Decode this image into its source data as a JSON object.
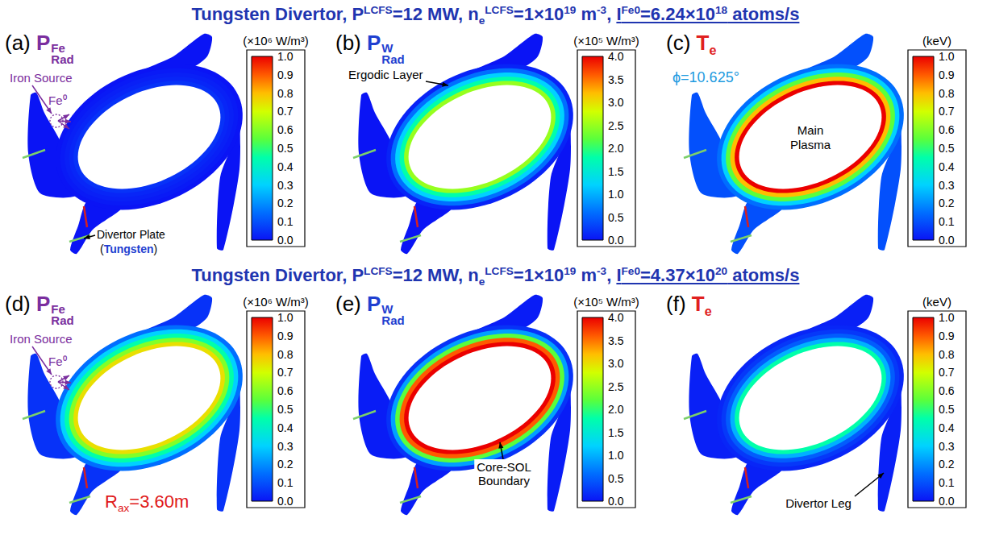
{
  "titles": [
    {
      "main": [
        {
          "text": "Tungsten Divertor, P"
        },
        {
          "sup": "LCFS"
        },
        {
          "text": "=12 MW, n"
        },
        {
          "sub": "e"
        },
        {
          "sup": "LCFS"
        },
        {
          "text": "=1×10"
        },
        {
          "sup": "19"
        },
        {
          "text": " m"
        },
        {
          "sup": "-3"
        },
        {
          "text": ", "
        }
      ],
      "highlight": [
        {
          "text": "I"
        },
        {
          "sup": "Fe0"
        },
        {
          "text": "=6.24×10"
        },
        {
          "sup": "18"
        },
        {
          "text": " atoms/s"
        }
      ]
    },
    {
      "main": [
        {
          "text": "Tungsten Divertor, P"
        },
        {
          "sup": "LCFS"
        },
        {
          "text": "=12 MW, n"
        },
        {
          "sub": "e"
        },
        {
          "sup": "LCFS"
        },
        {
          "text": "=1×10"
        },
        {
          "sup": "19"
        },
        {
          "text": " m"
        },
        {
          "sup": "-3"
        },
        {
          "text": ", "
        }
      ],
      "highlight": [
        {
          "text": "I"
        },
        {
          "sup": "Fe0"
        },
        {
          "text": "=4.37×10"
        },
        {
          "sup": "20"
        },
        {
          "text": " atoms/s"
        }
      ]
    }
  ],
  "chart_data": [
    {
      "type": "heatmap",
      "label": "(a)",
      "title": {
        "symbol": "P",
        "sub": "Rad",
        "sup": "Fe"
      },
      "color": "#7a2e9e",
      "colorbar": {
        "unit": "(×10⁶ W/m³)",
        "range": [
          0,
          1
        ],
        "ticks": [
          {
            "value": 0,
            "label": "0.0"
          },
          0.1,
          0.2,
          0.3,
          0.4,
          0.5,
          0.6,
          0.7,
          0.8,
          0.9,
          {
            "value": 1,
            "label": "1.0"
          }
        ]
      },
      "edge_profile": [
        0.05,
        0.03,
        0.02,
        0.01,
        0
      ],
      "divertor_leg": 0,
      "annotations": {
        "source": "Iron Source",
        "species": "Fe⁰",
        "plate": "Divertor Plate",
        "plate_material": "(Tungsten)"
      }
    },
    {
      "type": "heatmap",
      "label": "(b)",
      "title": {
        "symbol": "P",
        "sub": "Rad",
        "sup": "W"
      },
      "color": "#1f3fd0",
      "colorbar": {
        "unit": "(×10⁵ W/m³)",
        "range": [
          0,
          4
        ],
        "ticks": [
          {
            "value": 0,
            "label": "0.0"
          },
          0.5,
          {
            "value": 1,
            "label": "1.0"
          },
          1.5,
          {
            "value": 2,
            "label": "2.0"
          },
          2.5,
          {
            "value": 3,
            "label": "3.0"
          },
          3.5,
          {
            "value": 4,
            "label": "4.0"
          }
        ]
      },
      "edge_profile": [
        2.5,
        1.8,
        1.2,
        0.6,
        0.1
      ],
      "divertor_leg": 0,
      "annotations": {
        "layer": "Ergodic Layer"
      }
    },
    {
      "type": "heatmap",
      "label": "(c)",
      "title": {
        "symbol": "T",
        "sub": "e"
      },
      "color": "#e02020",
      "colorbar": {
        "unit": "(keV)",
        "range": [
          0,
          1
        ],
        "ticks": [
          {
            "value": 0,
            "label": "0.0"
          },
          0.1,
          0.2,
          0.3,
          0.4,
          0.5,
          0.6,
          0.7,
          0.8,
          0.9,
          {
            "value": 1,
            "label": "1.0"
          }
        ]
      },
      "edge_profile": [
        1.0,
        0.8,
        0.55,
        0.3,
        0.15
      ],
      "divertor_leg": 0.1,
      "annotations": {
        "angle": "ϕ=10.625°",
        "plasma": "Main Plasma"
      }
    },
    {
      "type": "heatmap",
      "label": "(d)",
      "title": {
        "symbol": "P",
        "sub": "Rad",
        "sup": "Fe"
      },
      "color": "#7a2e9e",
      "colorbar": {
        "unit": "(×10⁶ W/m³)",
        "range": [
          0,
          1
        ],
        "ticks": [
          {
            "value": 0,
            "label": "0.0"
          },
          0.1,
          0.2,
          0.3,
          0.4,
          0.5,
          0.6,
          0.7,
          0.8,
          0.9,
          {
            "value": 1,
            "label": "1.0"
          }
        ]
      },
      "edge_profile": [
        0.75,
        0.6,
        0.45,
        0.3,
        0.15
      ],
      "divertor_leg": 0.05,
      "annotations": {
        "source": "Iron Source",
        "species": "Fe⁰",
        "axis": {
          "symbol": "R",
          "sub": "ax",
          "text": "=3.60m"
        }
      }
    },
    {
      "type": "heatmap",
      "label": "(e)",
      "title": {
        "symbol": "P",
        "sub": "Rad",
        "sup": "W"
      },
      "color": "#1f3fd0",
      "colorbar": {
        "unit": "(×10⁵ W/m³)",
        "range": [
          0,
          4
        ],
        "ticks": [
          {
            "value": 0,
            "label": "0.0"
          },
          0.5,
          {
            "value": 1,
            "label": "1.0"
          },
          1.5,
          {
            "value": 2,
            "label": "2.0"
          },
          2.5,
          {
            "value": 3,
            "label": "3.0"
          },
          3.5,
          {
            "value": 4,
            "label": "4.0"
          }
        ]
      },
      "edge_profile": [
        4.0,
        3.6,
        2.2,
        0.9,
        0.2
      ],
      "divertor_leg": 0.05,
      "annotations": {
        "boundary": "Core-SOL Boundary"
      }
    },
    {
      "type": "heatmap",
      "label": "(f)",
      "title": {
        "symbol": "T",
        "sub": "e"
      },
      "color": "#e02020",
      "colorbar": {
        "unit": "(keV)",
        "range": [
          0,
          1
        ],
        "ticks": [
          {
            "value": 0,
            "label": "0.0"
          },
          0.1,
          0.2,
          0.3,
          0.4,
          0.5,
          0.6,
          0.7,
          0.8,
          0.9,
          {
            "value": 1,
            "label": "1.0"
          }
        ]
      },
      "edge_profile": [
        0.45,
        0.25,
        0.12,
        0.06,
        0.03
      ],
      "divertor_leg": 0.02,
      "annotations": {
        "leg": "Divertor Leg"
      }
    }
  ]
}
